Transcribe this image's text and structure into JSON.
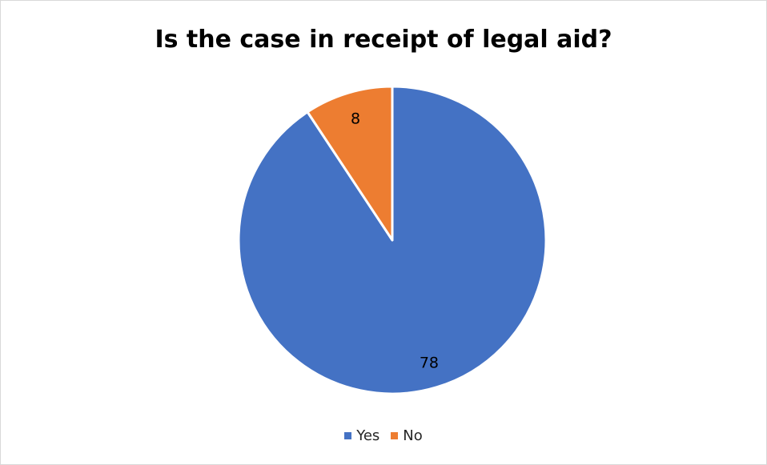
{
  "chart_data": {
    "type": "pie",
    "title": "Is the case in receipt of legal aid?",
    "categories": [
      "Yes",
      "No"
    ],
    "values": [
      78,
      8
    ],
    "data_labels": [
      "78",
      "8"
    ],
    "colors": [
      "#4472C4",
      "#ED7D31"
    ],
    "legend": {
      "placement": "bottom",
      "entries": [
        "Yes",
        "No"
      ]
    },
    "start_angle": "12 o'clock",
    "direction": "clockwise"
  }
}
